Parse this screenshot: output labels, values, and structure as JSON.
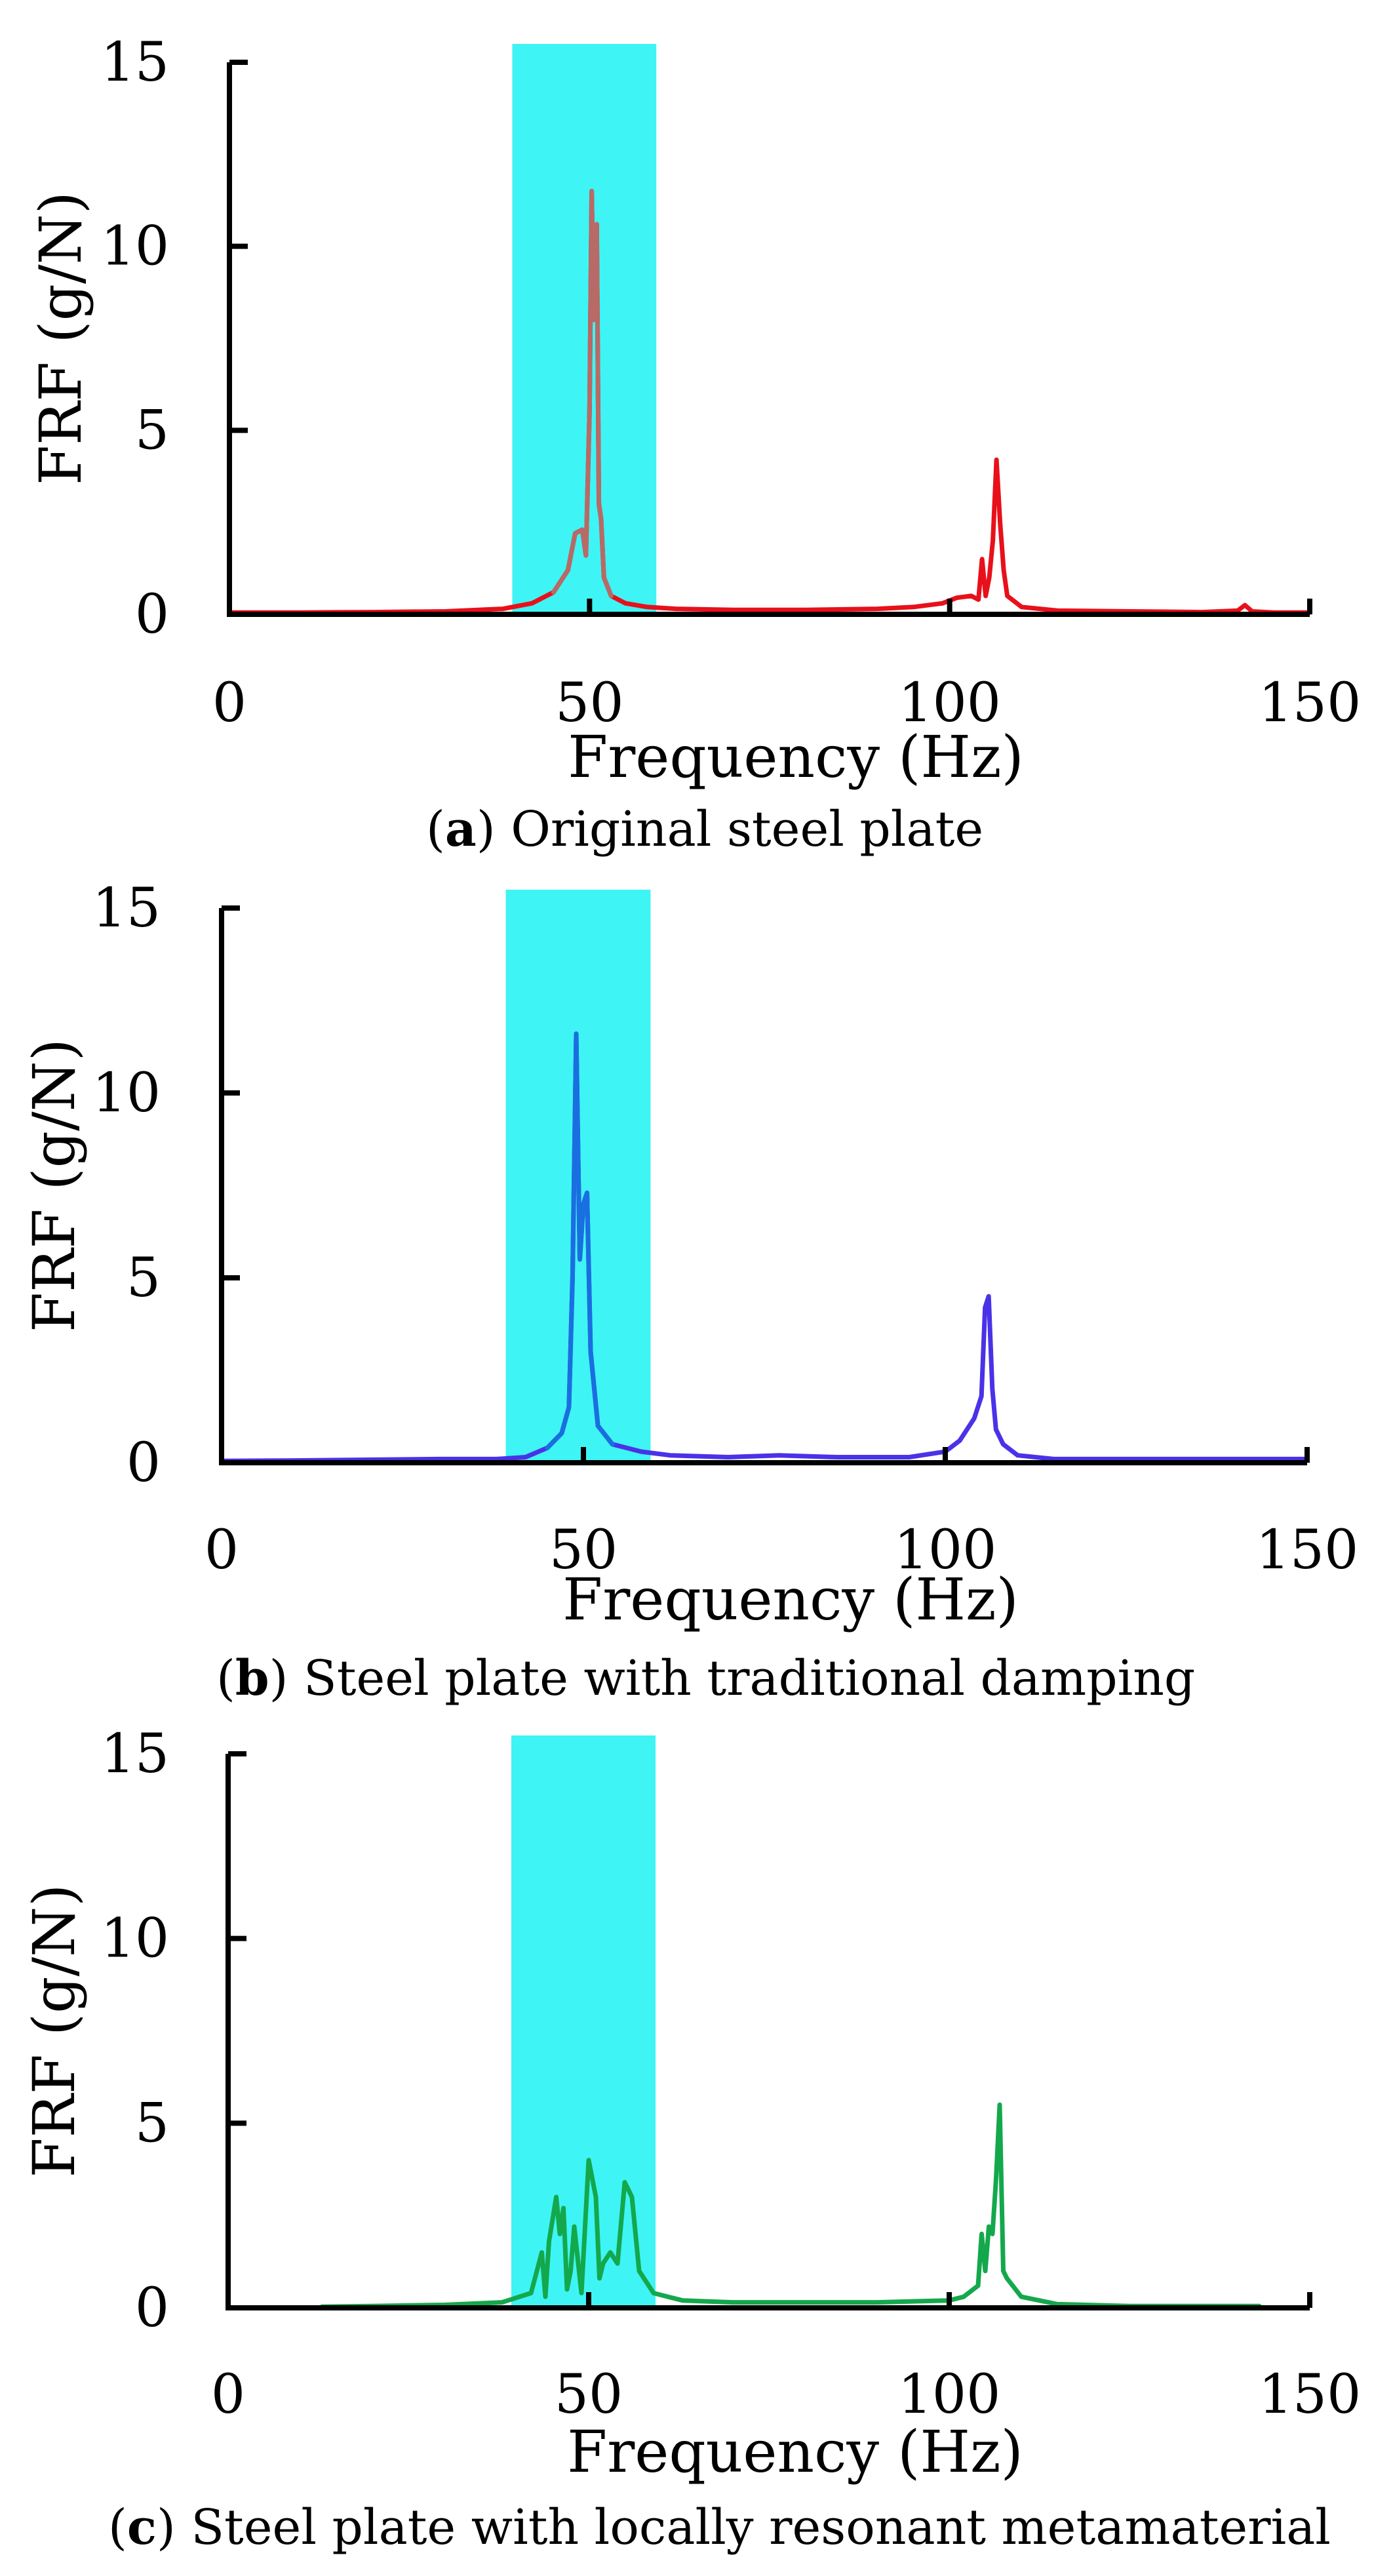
{
  "chart_data": [
    {
      "type": "line",
      "panel_letter": "a",
      "caption_open": "(",
      "caption_close": ")",
      "caption_text": " Original steel plate",
      "xlabel": "Frequency (Hz)",
      "ylabel": "FRF (g/N)",
      "xlim": [
        0,
        150
      ],
      "ylim": [
        0,
        15
      ],
      "xticks": [
        "0",
        "50",
        "100",
        "150"
      ],
      "yticks": [
        "0",
        "5",
        "10",
        "15"
      ],
      "highlight_band": {
        "x0": 40,
        "x1": 60,
        "color": "#3ff4f4"
      },
      "series": [
        {
          "name": "Original steel plate",
          "color": "#e8101a",
          "peak_color": "#b86a66",
          "x": [
            0,
            10,
            20,
            30,
            38,
            42,
            45,
            47,
            48,
            49,
            49.5,
            50,
            50.3,
            50.6,
            51,
            51.3,
            51.6,
            52,
            53,
            55,
            58,
            62,
            70,
            80,
            90,
            95,
            99,
            101,
            103,
            104,
            104.5,
            105,
            105.5,
            106,
            106.5,
            107,
            107.5,
            108,
            110,
            115,
            125,
            135,
            140,
            141,
            142,
            145,
            150
          ],
          "y": [
            0.05,
            0.05,
            0.06,
            0.08,
            0.15,
            0.3,
            0.6,
            1.2,
            2.2,
            2.3,
            1.6,
            5.5,
            11.5,
            8.0,
            10.6,
            3.0,
            2.6,
            1.0,
            0.5,
            0.3,
            0.2,
            0.15,
            0.12,
            0.12,
            0.15,
            0.2,
            0.3,
            0.45,
            0.5,
            0.4,
            1.5,
            0.5,
            1.0,
            2.0,
            4.2,
            2.5,
            1.2,
            0.5,
            0.2,
            0.1,
            0.08,
            0.06,
            0.1,
            0.25,
            0.08,
            0.05,
            0.05
          ]
        }
      ]
    },
    {
      "type": "line",
      "panel_letter": "b",
      "caption_open": "(",
      "caption_close": ")",
      "caption_text": " Steel plate with traditional damping",
      "xlabel": "Frequency (Hz)",
      "ylabel": "FRF (g/N)",
      "xlim": [
        0,
        150
      ],
      "ylim": [
        0,
        15
      ],
      "xticks": [
        "0",
        "50",
        "100",
        "150"
      ],
      "yticks": [
        "0",
        "5",
        "10",
        "15"
      ],
      "highlight_band": {
        "x0": 40,
        "x1": 60,
        "color": "#3ff4f4"
      },
      "series": [
        {
          "name": "Steel plate with traditional damping",
          "color": "#4a32e8",
          "peak_color": "#1a6fe0",
          "x": [
            0,
            10,
            20,
            30,
            38,
            42,
            45,
            47,
            48,
            48.5,
            49,
            49.5,
            50,
            50.5,
            51,
            52,
            54,
            58,
            62,
            70,
            77,
            85,
            95,
            100,
            102,
            104,
            105,
            105.5,
            106,
            106.5,
            107,
            108,
            110,
            115,
            130,
            150
          ],
          "y": [
            0.05,
            0.06,
            0.08,
            0.1,
            0.1,
            0.15,
            0.4,
            0.8,
            1.5,
            5.0,
            11.6,
            5.5,
            7.0,
            7.3,
            3.0,
            1.0,
            0.5,
            0.3,
            0.2,
            0.15,
            0.2,
            0.15,
            0.15,
            0.3,
            0.6,
            1.2,
            1.8,
            4.2,
            4.5,
            2.0,
            0.9,
            0.5,
            0.2,
            0.1,
            0.1,
            0.1
          ]
        }
      ]
    },
    {
      "type": "line",
      "panel_letter": "c",
      "caption_open": "(",
      "caption_close": ")",
      "caption_text": " Steel plate with locally resonant metamaterial",
      "xlabel": "Frequency (Hz)",
      "ylabel": "FRF (g/N)",
      "xlim": [
        0,
        150
      ],
      "ylim": [
        0,
        15
      ],
      "xticks": [
        "0",
        "50",
        "100",
        "150"
      ],
      "yticks": [
        "0",
        "5",
        "10",
        "15"
      ],
      "highlight_band": {
        "x0": 40,
        "x1": 60,
        "color": "#3ff4f4"
      },
      "series": [
        {
          "name": "Steel plate with locally resonant metamaterial",
          "color": "#14a84c",
          "x": [
            13,
            20,
            30,
            38,
            42,
            43.5,
            44,
            44.5,
            45.5,
            46,
            46.5,
            47,
            47.5,
            48,
            49,
            50,
            51,
            51.5,
            52,
            53,
            54,
            55,
            55.5,
            56,
            57,
            59,
            63,
            70,
            80,
            90,
            100,
            102,
            104,
            104.5,
            105,
            105.5,
            106,
            106.5,
            107,
            107.5,
            108,
            110,
            115,
            125,
            135,
            143
          ],
          "y": [
            0.03,
            0.05,
            0.08,
            0.15,
            0.4,
            1.5,
            0.3,
            1.8,
            3.0,
            2.0,
            2.7,
            0.5,
            1.0,
            2.2,
            0.4,
            4.0,
            3.0,
            0.8,
            1.2,
            1.5,
            1.2,
            3.4,
            3.2,
            3.0,
            1.0,
            0.4,
            0.2,
            0.15,
            0.15,
            0.15,
            0.2,
            0.3,
            0.6,
            2.0,
            1.0,
            2.2,
            2.0,
            3.5,
            5.5,
            1.0,
            0.8,
            0.3,
            0.1,
            0.05,
            0.05,
            0.05
          ]
        }
      ]
    }
  ]
}
